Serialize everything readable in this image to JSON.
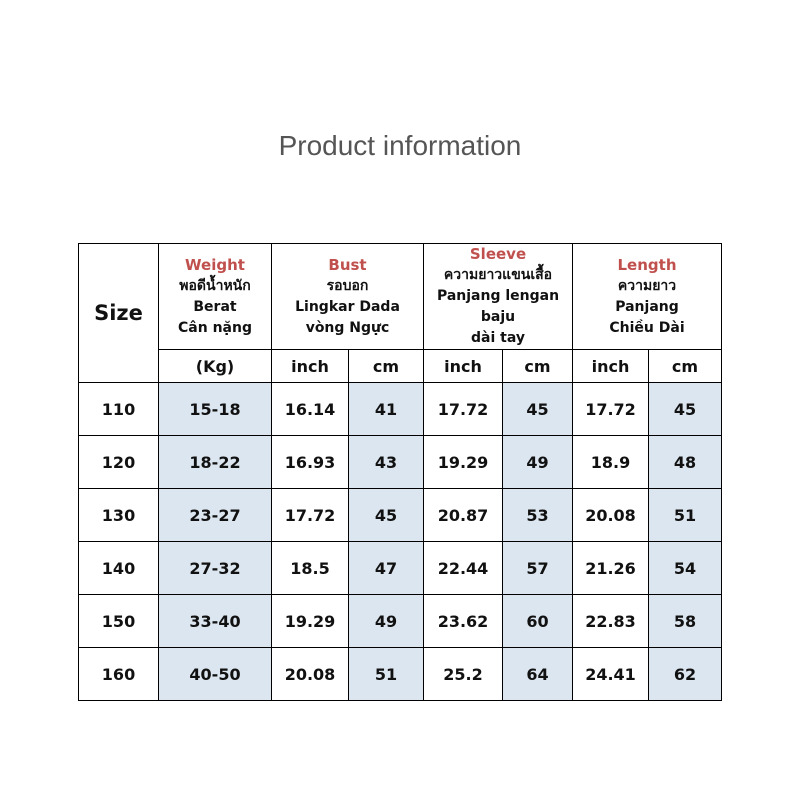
{
  "title": "Product information",
  "header": {
    "size": "Size",
    "groups": [
      {
        "title": "Weight",
        "lines": [
          "พอดีน้ำหนัก",
          "Berat",
          "Cân nặng"
        ]
      },
      {
        "title": "Bust",
        "lines": [
          "รอบอก",
          "Lingkar Dada",
          "vòng Ngực"
        ]
      },
      {
        "title": "Sleeve",
        "lines": [
          "ความยาวแขนเสื้อ",
          "Panjang lengan baju",
          "dài tay"
        ]
      },
      {
        "title": "Length",
        "lines": [
          "ความยาว",
          "Panjang",
          "Chiều Dài"
        ]
      }
    ],
    "units": [
      "(Kg)",
      "inch",
      "cm",
      "inch",
      "cm",
      "inch",
      "cm"
    ]
  },
  "rows": [
    [
      "110",
      "15-18",
      "16.14",
      "41",
      "17.72",
      "45",
      "17.72",
      "45"
    ],
    [
      "120",
      "18-22",
      "16.93",
      "43",
      "19.29",
      "49",
      "18.9",
      "48"
    ],
    [
      "130",
      "23-27",
      "17.72",
      "45",
      "20.87",
      "53",
      "20.08",
      "51"
    ],
    [
      "140",
      "27-32",
      "18.5",
      "47",
      "22.44",
      "57",
      "21.26",
      "54"
    ],
    [
      "150",
      "33-40",
      "19.29",
      "49",
      "23.62",
      "60",
      "22.83",
      "58"
    ],
    [
      "160",
      "40-50",
      "20.08",
      "51",
      "25.2",
      "64",
      "24.41",
      "62"
    ]
  ],
  "colors": {
    "accent": "#c0504d",
    "highlight": "#dce6f0"
  }
}
